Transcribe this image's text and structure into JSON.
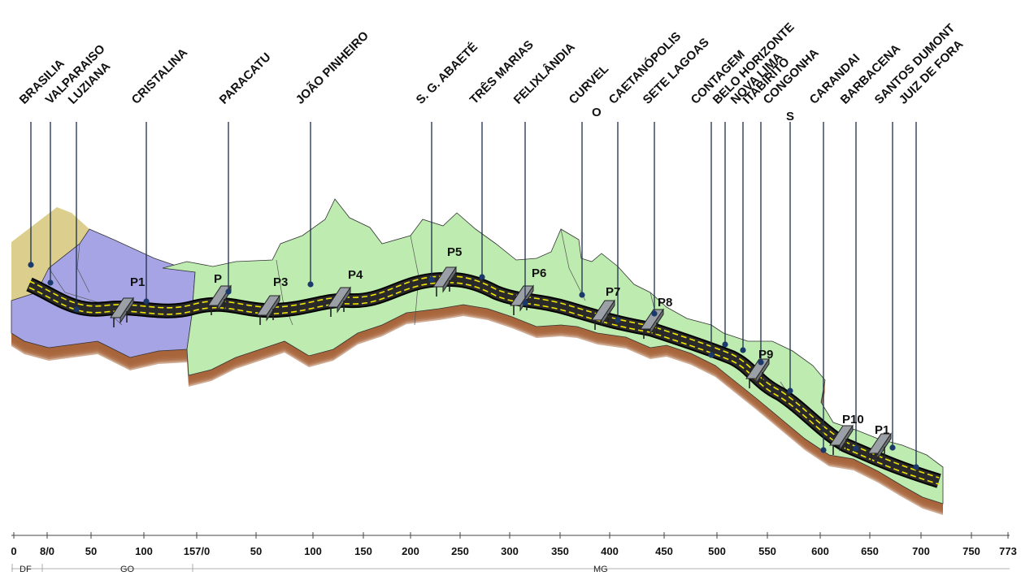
{
  "colors": {
    "df_region": "#dccf8e",
    "go_region": "#a7a4e6",
    "mg_region": "#bdebb0",
    "terrain_side": "#a8653a",
    "road_outer": "#000000",
    "road_center": "#f2e600",
    "leader_line": "#1b2e4a",
    "marker_dot": "#1b3a6b",
    "bridge": "#9aa0a6"
  },
  "cities": [
    {
      "id": "brasilia",
      "name": "BRASILIA"
    },
    {
      "id": "valparaiso",
      "name": "VALPARAISO"
    },
    {
      "id": "luziana",
      "name": "LUZIANA"
    },
    {
      "id": "cristalina",
      "name": "CRISTALINA"
    },
    {
      "id": "paracatu",
      "name": "PARACATU"
    },
    {
      "id": "joao-pinheiro",
      "name": "JOÃO PINHEIRO"
    },
    {
      "id": "sg-abaete",
      "name": "S. G. ABAETÉ"
    },
    {
      "id": "tres-marias",
      "name": "TRÊS MARIAS"
    },
    {
      "id": "felixlandia",
      "name": "FELIXLÂNDIA"
    },
    {
      "id": "curvelo",
      "name": "CURVEL",
      "extra": "O"
    },
    {
      "id": "caetanopolis",
      "name": "CAETANÓPOLIS"
    },
    {
      "id": "sete-lagoas",
      "name": "SETE LAGOAS"
    },
    {
      "id": "contagem",
      "name": "CONTAGEM"
    },
    {
      "id": "belo-horizonte",
      "name": "BELO HORIZONTE"
    },
    {
      "id": "nova-lima",
      "name": "NOVA LIMA"
    },
    {
      "id": "itabirito",
      "name": "ITABIRITO"
    },
    {
      "id": "congonhas",
      "name": "CONGONHA",
      "extra": "S"
    },
    {
      "id": "carandai",
      "name": "CARANDAI"
    },
    {
      "id": "barbacena",
      "name": "BARBACENA"
    },
    {
      "id": "santos-dumont",
      "name": "SANTOS DUMONT"
    },
    {
      "id": "juiz-de-fora",
      "name": "JUIZ DE FORA"
    }
  ],
  "points": [
    {
      "id": "p1",
      "label": "P1"
    },
    {
      "id": "p2",
      "label": "P"
    },
    {
      "id": "p3",
      "label": "P3"
    },
    {
      "id": "p4",
      "label": "P4"
    },
    {
      "id": "p5",
      "label": "P5"
    },
    {
      "id": "p6",
      "label": "P6"
    },
    {
      "id": "p7",
      "label": "P7"
    },
    {
      "id": "p8",
      "label": "P8"
    },
    {
      "id": "p9",
      "label": "P9"
    },
    {
      "id": "p10",
      "label": "P10"
    },
    {
      "id": "p11",
      "label": "P1"
    }
  ],
  "scale": {
    "ticks": [
      "0",
      "8/0",
      "50",
      "100",
      "157/0",
      "50",
      "100",
      "150",
      "200",
      "250",
      "300",
      "350",
      "400",
      "450",
      "500",
      "550",
      "600",
      "650",
      "700",
      "750",
      "773"
    ],
    "regions": [
      "DF",
      "GO",
      "MG"
    ]
  }
}
